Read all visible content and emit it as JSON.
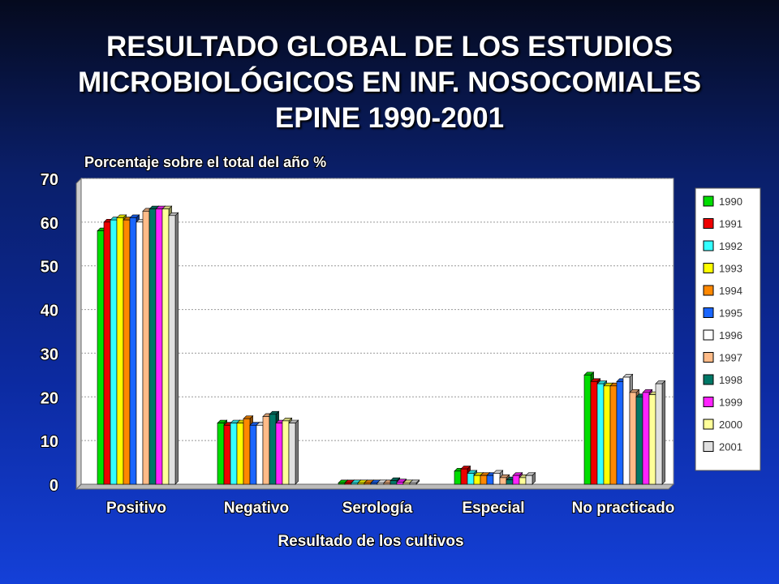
{
  "title_lines": [
    "RESULTADO GLOBAL DE LOS ESTUDIOS",
    "MICROBIOLÓGICOS EN INF. NOSOCOMIALES",
    "EPINE 1990-2001"
  ],
  "chart_data": {
    "type": "bar",
    "ylabel": "Porcentaje sobre el total del año %",
    "xlabel": "Resultado de los cultivos",
    "ylim": [
      0,
      70
    ],
    "yticks": [
      "0",
      "10",
      "20",
      "30",
      "40",
      "50",
      "60",
      "70"
    ],
    "grid": true,
    "legend_position": "right",
    "categories": [
      "Positivo",
      "Negativo",
      "Serología",
      "Especial",
      "No practicado"
    ],
    "series": [
      {
        "name": "1990",
        "color": "#00dd00",
        "values": [
          58,
          14,
          0.3,
          3,
          25
        ]
      },
      {
        "name": "1991",
        "color": "#ee0000",
        "values": [
          60,
          13.5,
          0.3,
          3.5,
          23.5
        ]
      },
      {
        "name": "1992",
        "color": "#33ffff",
        "values": [
          60.5,
          14,
          0.3,
          2.5,
          23
        ]
      },
      {
        "name": "1993",
        "color": "#ffff00",
        "values": [
          61,
          14,
          0.3,
          2,
          22.5
        ]
      },
      {
        "name": "1994",
        "color": "#ff8800",
        "values": [
          60.5,
          15,
          0.3,
          2,
          22.5
        ]
      },
      {
        "name": "1995",
        "color": "#1a66ff",
        "values": [
          61,
          13.5,
          0.3,
          2,
          23.5
        ]
      },
      {
        "name": "1996",
        "color": "#ffffff",
        "values": [
          60,
          13.5,
          0.3,
          2.5,
          24.5
        ]
      },
      {
        "name": "1997",
        "color": "#ffbb88",
        "values": [
          62.5,
          15.5,
          0.3,
          1.5,
          21
        ]
      },
      {
        "name": "1998",
        "color": "#007766",
        "values": [
          63,
          16,
          0.8,
          1,
          20
        ]
      },
      {
        "name": "1999",
        "color": "#ff22ff",
        "values": [
          63,
          14,
          0.5,
          2,
          21
        ]
      },
      {
        "name": "2000",
        "color": "#ffff99",
        "values": [
          63,
          14.5,
          0.3,
          1.5,
          20.5
        ]
      },
      {
        "name": "2001",
        "color": "#e0e0e0",
        "values": [
          61.5,
          14,
          0.3,
          2,
          23
        ]
      }
    ]
  }
}
